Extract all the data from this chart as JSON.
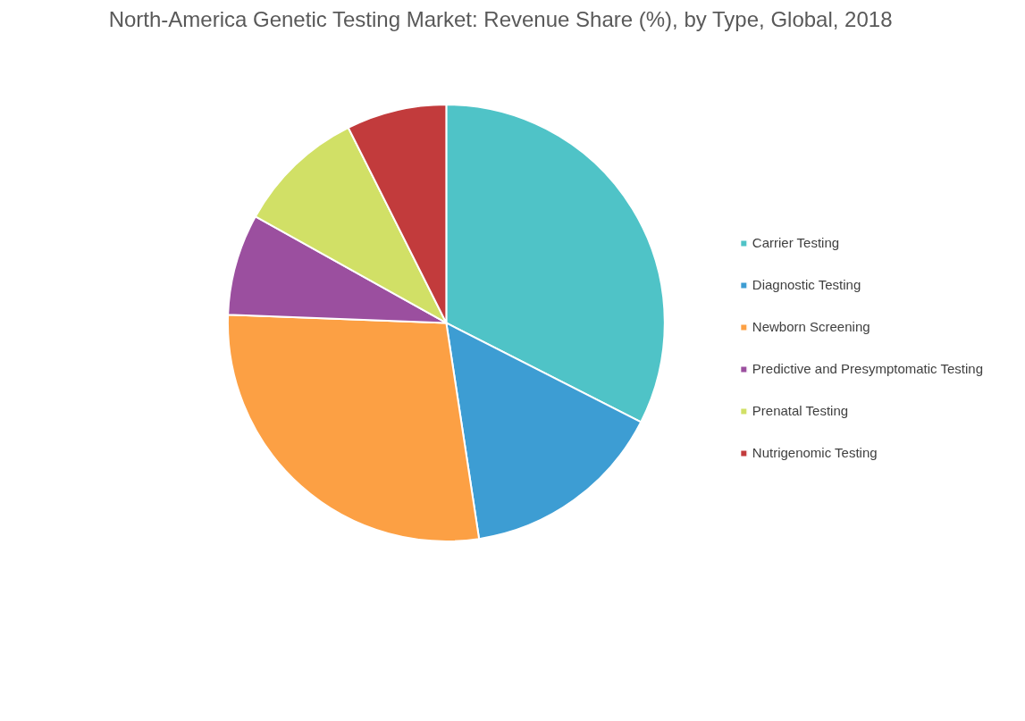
{
  "chart_data": {
    "type": "pie",
    "title": "North-America Genetic Testing Market: Revenue Share (%), by Type, Global, 2018",
    "categories": [
      "Carrier Testing",
      "Diagnostic Testing",
      "Newborn Screening",
      "Predictive and Presymptomatic Testing",
      "Prenatal Testing",
      "Nutrigenomic Testing"
    ],
    "values": [
      32.5,
      15.1,
      28,
      7.5,
      9.5,
      7.4
    ],
    "colors": [
      "#4fc3c7",
      "#3d9dd3",
      "#fca044",
      "#9b4f9f",
      "#d1e066",
      "#c23b3c"
    ],
    "legend": "right"
  }
}
